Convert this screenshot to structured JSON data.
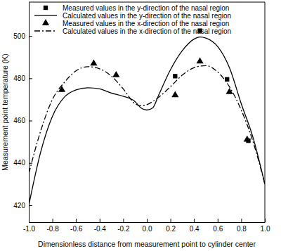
{
  "chart_data": {
    "type": "line",
    "x_label": "Dimensionless distance from measurement point to cylinder center",
    "y_label": "Measurement point temperature (K)",
    "xlim": [
      -1.0,
      1.0
    ],
    "ylim": [
      412,
      516
    ],
    "xticks": [
      {
        "value": -1.0,
        "label": "-1.0"
      },
      -0.8,
      -0.6,
      -0.4,
      -0.2,
      {
        "value": 0.0,
        "label": "0.0"
      },
      0.2,
      0.4,
      0.6,
      0.8,
      {
        "value": 1.0,
        "label": "1.0"
      }
    ],
    "yticks": [
      420,
      440,
      460,
      480,
      500
    ],
    "grid": false,
    "legend": "top-left",
    "series": [
      {
        "name": "Measured values in the y-direction of the nasal region",
        "type": "scatter",
        "marker": "square",
        "color": "#000000",
        "x": [
          0.24,
          0.45,
          0.68,
          0.86
        ],
        "values": [
          481,
          502.5,
          479.5,
          450.5
        ]
      },
      {
        "name": "Calculated values in the y-direction of the nasal region",
        "type": "line",
        "line_style": "solid",
        "color": "#000000",
        "x": [
          -1.0,
          -0.9,
          -0.8,
          -0.7,
          -0.6,
          -0.5,
          -0.4,
          -0.3,
          -0.2,
          -0.1,
          -0.05,
          0.0,
          0.05,
          0.1,
          0.2,
          0.3,
          0.4,
          0.45,
          0.5,
          0.6,
          0.7,
          0.8,
          0.9,
          1.0
        ],
        "values": [
          420,
          445,
          462,
          471,
          474.5,
          475.5,
          475,
          473,
          471.5,
          469,
          466,
          465,
          466,
          472,
          484,
          493,
          498.5,
          499.5,
          499,
          495,
          485,
          468,
          452,
          430
        ]
      },
      {
        "name": "Measured values in the x-direction of the nasal region",
        "type": "scatter",
        "marker": "triangle",
        "color": "#000000",
        "x": [
          -0.72,
          -0.45,
          -0.26,
          0.24,
          0.45,
          0.7,
          0.85
        ],
        "values": [
          474.5,
          487,
          481.5,
          472,
          488,
          473.5,
          451
        ]
      },
      {
        "name": "Calculated values in the x-direction of the nasal region",
        "type": "line",
        "line_style": "dashdot",
        "color": "#000000",
        "x": [
          -1.0,
          -0.9,
          -0.8,
          -0.7,
          -0.6,
          -0.5,
          -0.4,
          -0.3,
          -0.2,
          -0.1,
          -0.05,
          0.0,
          0.05,
          0.1,
          0.2,
          0.3,
          0.4,
          0.5,
          0.6,
          0.7,
          0.8,
          0.9,
          1.0
        ],
        "values": [
          435,
          455,
          470,
          478,
          483.5,
          485.5,
          484.5,
          481,
          475,
          468,
          467,
          467.5,
          469,
          471,
          476,
          481.5,
          485,
          486,
          483,
          476,
          465,
          450,
          430
        ]
      }
    ]
  }
}
